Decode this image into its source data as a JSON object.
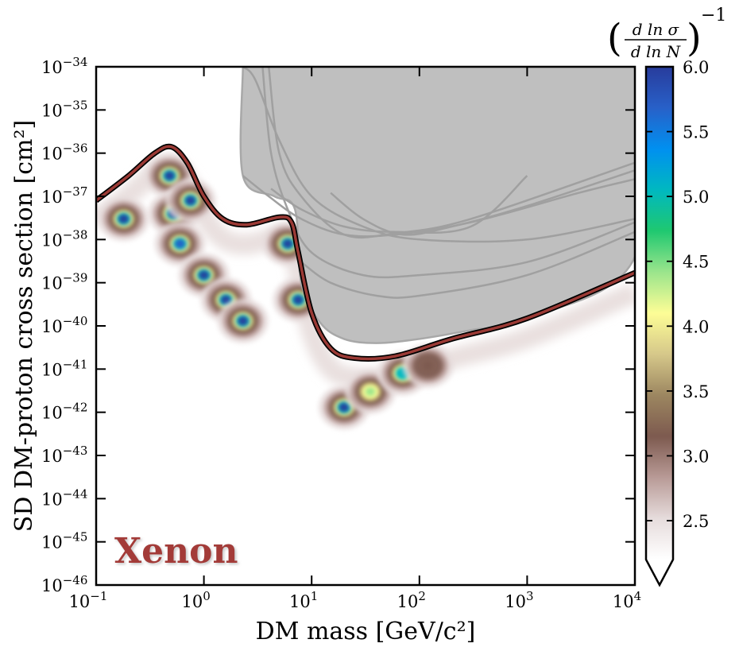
{
  "chart_data": {
    "type": "heatmap",
    "xlabel": "DM mass [GeV/c²]",
    "ylabel": "SD DM-proton cross section [cm²]",
    "x_scale": "log",
    "y_scale": "log",
    "xlim": [
      0.1,
      10000
    ],
    "ylim": [
      1e-46,
      1e-34
    ],
    "x_ticks": [
      {
        "value": 0.1,
        "base": "10",
        "exp": "−1"
      },
      {
        "value": 1,
        "base": "10",
        "exp": "0"
      },
      {
        "value": 10,
        "base": "10",
        "exp": "1"
      },
      {
        "value": 100,
        "base": "10",
        "exp": "2"
      },
      {
        "value": 1000,
        "base": "10",
        "exp": "3"
      },
      {
        "value": 10000,
        "base": "10",
        "exp": "4"
      }
    ],
    "y_ticks": [
      {
        "value": 1e-34,
        "base": "10",
        "exp": "−34"
      },
      {
        "value": 1e-35,
        "base": "10",
        "exp": "−35"
      },
      {
        "value": 1e-36,
        "base": "10",
        "exp": "−36"
      },
      {
        "value": 1e-37,
        "base": "10",
        "exp": "−37"
      },
      {
        "value": 1e-38,
        "base": "10",
        "exp": "−38"
      },
      {
        "value": 1e-39,
        "base": "10",
        "exp": "−39"
      },
      {
        "value": 1e-40,
        "base": "10",
        "exp": "−40"
      },
      {
        "value": 1e-41,
        "base": "10",
        "exp": "−41"
      },
      {
        "value": 1e-42,
        "base": "10",
        "exp": "−42"
      },
      {
        "value": 1e-43,
        "base": "10",
        "exp": "−43"
      },
      {
        "value": 1e-44,
        "base": "10",
        "exp": "−44"
      },
      {
        "value": 1e-45,
        "base": "10",
        "exp": "−45"
      },
      {
        "value": 1e-46,
        "base": "10",
        "exp": "−46"
      }
    ],
    "annotation": "Xenon",
    "annotation_color": "#a33a37",
    "limit_curve_color": "#9b3a35",
    "excluded_region_color": "#bfbfbf",
    "colorbar": {
      "title_numerator": "d ln σ",
      "title_denominator": "d ln N",
      "title_exponent": "−1",
      "min": 2.2,
      "max": 6.0,
      "ticks": [
        "2.5",
        "3.0",
        "3.5",
        "4.0",
        "4.5",
        "5.0",
        "5.5",
        "6.0"
      ],
      "tick_values": [
        2.5,
        3.0,
        3.5,
        4.0,
        4.5,
        5.0,
        5.5,
        6.0
      ],
      "extend": "min",
      "colormap": [
        "#ffffff",
        "#e6dcdc",
        "#b89a96",
        "#7d5a4f",
        "#9c8660",
        "#d6c88a",
        "#fdfd96",
        "#9be58c",
        "#1fc870",
        "#00b8c0",
        "#0090f0",
        "#2860c8",
        "#283c9c"
      ]
    },
    "limit_curve": [
      [
        0.1,
        8e-38
      ],
      [
        0.2,
        3e-37
      ],
      [
        0.35,
        1e-36
      ],
      [
        0.5,
        1.4e-36
      ],
      [
        0.7,
        6e-37
      ],
      [
        1.0,
        1e-37
      ],
      [
        1.5,
        3e-38
      ],
      [
        2.5,
        2.2e-38
      ],
      [
        5.0,
        3.3e-38
      ],
      [
        6.5,
        2.5e-38
      ],
      [
        7.5,
        5e-39
      ],
      [
        10,
        2e-40
      ],
      [
        15,
        3e-41
      ],
      [
        25,
        1.8e-41
      ],
      [
        60,
        2e-41
      ],
      [
        200,
        5e-41
      ],
      [
        1000,
        1.5e-40
      ],
      [
        10000,
        1.7e-39
      ]
    ],
    "excluded_region_boundary": [
      [
        2.3,
        1e-34
      ],
      [
        2.3,
        3e-37
      ],
      [
        4.5,
        1e-37
      ],
      [
        7.0,
        5e-38
      ],
      [
        8.0,
        1e-39
      ],
      [
        12,
        1.2e-40
      ],
      [
        20,
        5e-41
      ],
      [
        40,
        4e-41
      ],
      [
        100,
        5e-41
      ],
      [
        300,
        8e-41
      ],
      [
        1000,
        1.5e-40
      ],
      [
        10000,
        4e-39
      ],
      [
        10000,
        1e-34
      ]
    ],
    "other_limit_curves": [
      [
        [
          3.5,
          1e-34
        ],
        [
          4.2,
          1e-36
        ],
        [
          6,
          5e-38
        ],
        [
          10,
          5e-39
        ],
        [
          30,
          1.5e-39
        ],
        [
          100,
          1.5e-39
        ],
        [
          1000,
          3e-39
        ],
        [
          10000,
          2.5e-38
        ]
      ],
      [
        [
          2.3,
          3e-37
        ],
        [
          4,
          1e-37
        ],
        [
          8,
          3e-38
        ],
        [
          20,
          1.3e-38
        ],
        [
          60,
          1.3e-38
        ],
        [
          300,
          2.5e-38
        ],
        [
          3000,
          1.2e-37
        ],
        [
          10000,
          2.5e-37
        ]
      ],
      [
        [
          4,
          1e-34
        ],
        [
          5,
          1e-36
        ],
        [
          8,
          1e-37
        ],
        [
          20,
          1.3e-38
        ],
        [
          60,
          1.4e-38
        ],
        [
          300,
          3e-38
        ],
        [
          10000,
          6e-37
        ]
      ],
      [
        [
          4.2,
          1.5e-37
        ],
        [
          8,
          5e-38
        ],
        [
          20,
          2e-38
        ],
        [
          60,
          1.5e-38
        ],
        [
          300,
          2e-38
        ],
        [
          1000,
          3e-37
        ]
      ],
      [
        [
          15,
          1.2e-37
        ],
        [
          30,
          3e-38
        ],
        [
          70,
          1.3e-38
        ],
        [
          200,
          2e-38
        ],
        [
          1000,
          6e-38
        ],
        [
          10000,
          4e-37
        ]
      ],
      [
        [
          2.3,
          1e-34
        ],
        [
          3,
          5e-35
        ],
        [
          5,
          2e-36
        ],
        [
          10,
          1e-37
        ],
        [
          30,
          2e-38
        ],
        [
          100,
          1e-38
        ],
        [
          1000,
          1e-38
        ],
        [
          10000,
          3e-38
        ]
      ],
      [
        [
          8,
          3e-39
        ],
        [
          15,
          1e-39
        ],
        [
          40,
          5e-40
        ],
        [
          100,
          5e-40
        ],
        [
          1000,
          1.5e-39
        ],
        [
          10000,
          1.5e-38
        ]
      ]
    ],
    "hotspots": [
      {
        "mass": 0.18,
        "sigma": 3e-38,
        "value": 6.0
      },
      {
        "mass": 0.48,
        "sigma": 3e-37,
        "value": 6.0
      },
      {
        "mass": 0.52,
        "sigma": 4e-38,
        "value": 6.0
      },
      {
        "mass": 0.6,
        "sigma": 8e-39,
        "value": 5.8
      },
      {
        "mass": 0.75,
        "sigma": 8e-38,
        "value": 6.0
      },
      {
        "mass": 1.0,
        "sigma": 1.5e-39,
        "value": 6.0
      },
      {
        "mass": 1.6,
        "sigma": 4e-40,
        "value": 6.0
      },
      {
        "mass": 2.3,
        "sigma": 1.3e-40,
        "value": 6.0
      },
      {
        "mass": 6.0,
        "sigma": 8e-39,
        "value": 6.0
      },
      {
        "mass": 7.5,
        "sigma": 4e-40,
        "value": 6.0
      },
      {
        "mass": 20,
        "sigma": 1.3e-42,
        "value": 6.0
      },
      {
        "mass": 35,
        "sigma": 3e-42,
        "value": 4.5
      },
      {
        "mass": 70,
        "sigma": 8e-42,
        "value": 5.0
      },
      {
        "mass": 120,
        "sigma": 1.2e-41,
        "value": 3.2
      }
    ]
  }
}
